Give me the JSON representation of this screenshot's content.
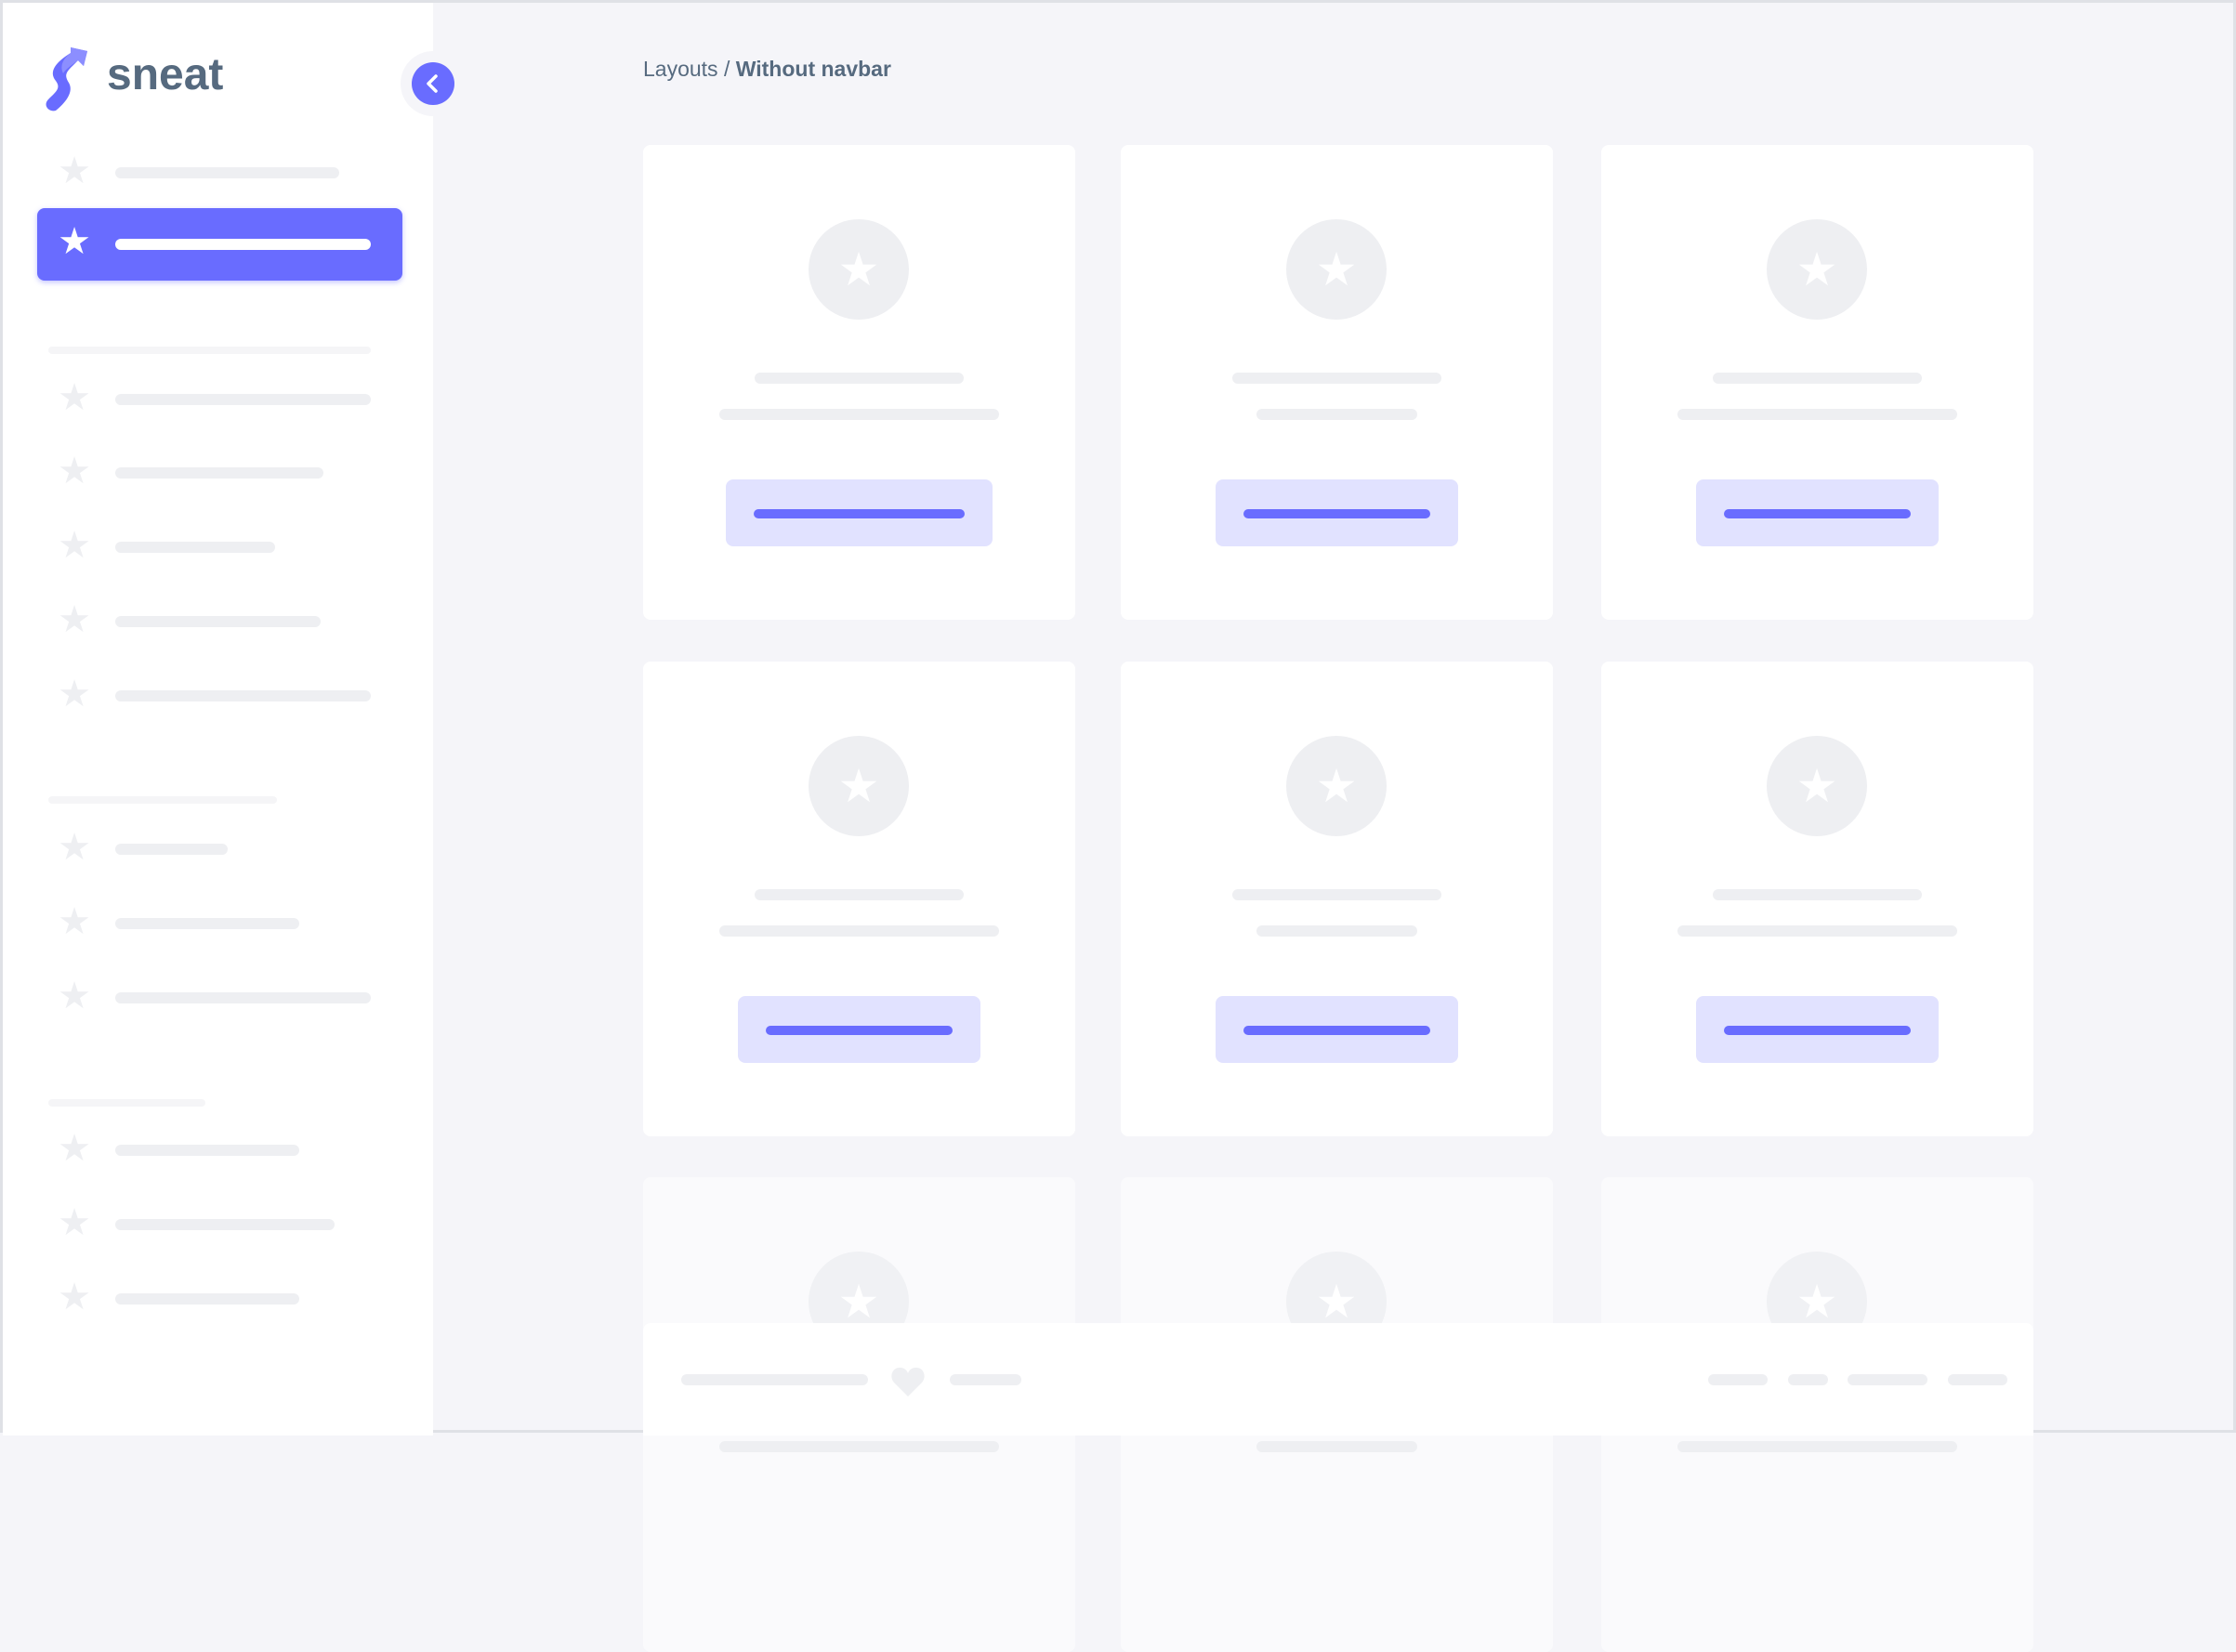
{
  "brand": {
    "name": "sneat",
    "primary_color": "#696cff"
  },
  "breadcrumb": {
    "parent": "Layouts",
    "separator": "/",
    "current": "Without navbar"
  },
  "sidebar": {
    "active_index": 1,
    "toggle_icon": "chevron-left-icon",
    "item_icon": "star-icon"
  },
  "footer": {
    "icon": "heart-icon"
  }
}
